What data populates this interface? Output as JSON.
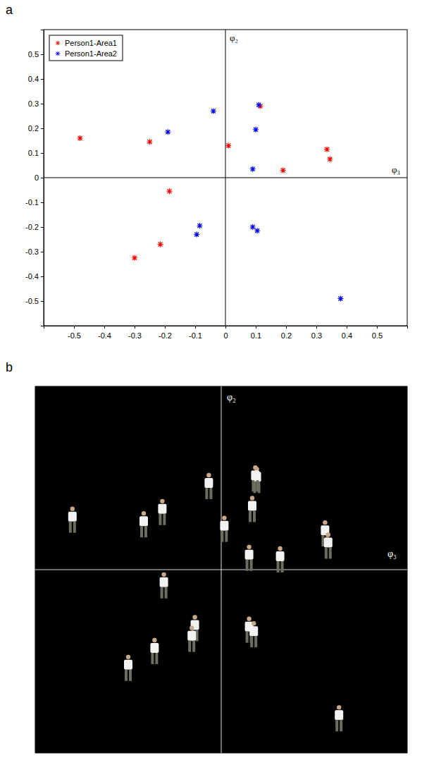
{
  "chart_data": [
    {
      "type": "scatter",
      "panel_label": "a",
      "xlim": [
        -0.6,
        0.6
      ],
      "ylim": [
        -0.6,
        0.6
      ],
      "xticks": [
        -0.5,
        -0.4,
        -0.3,
        -0.2,
        -0.1,
        0,
        0.1,
        0.2,
        0.3,
        0.4,
        0.5
      ],
      "yticks": [
        -0.5,
        -0.4,
        -0.3,
        -0.2,
        -0.1,
        0,
        0.1,
        0.2,
        0.3,
        0.4,
        0.5
      ],
      "annotations": [
        "φ₂",
        "φ₃"
      ],
      "legend": "upper-left",
      "marker": "asterisk",
      "grid": false,
      "series": [
        {
          "name": "Person1-Area1",
          "color": "#ff0000",
          "x": [
            -0.48,
            -0.25,
            0.01,
            0.115,
            0.19,
            0.335,
            0.345,
            -0.185,
            -0.215,
            -0.3
          ],
          "values": [
            0.16,
            0.145,
            0.13,
            0.29,
            0.03,
            0.115,
            0.075,
            -0.055,
            -0.27,
            -0.325
          ]
        },
        {
          "name": "Person1-Area2",
          "color": "#0000ff",
          "x": [
            -0.19,
            -0.04,
            0.11,
            0.1,
            0.09,
            0.09,
            0.105,
            -0.085,
            -0.095,
            0.38
          ],
          "values": [
            0.185,
            0.27,
            0.295,
            0.195,
            0.035,
            -0.2,
            -0.215,
            -0.195,
            -0.23,
            -0.49
          ]
        }
      ]
    },
    {
      "type": "image_scatter",
      "panel_label": "b",
      "xlim": [
        -0.6,
        0.6
      ],
      "ylim": [
        -0.6,
        0.6
      ],
      "tick_labels": false,
      "annotations": [
        "φ₂",
        "φ₃"
      ],
      "marker": "person",
      "x": [
        -0.48,
        -0.25,
        0.01,
        0.115,
        0.19,
        0.335,
        0.345,
        -0.185,
        -0.215,
        -0.3,
        -0.19,
        -0.04,
        0.11,
        0.1,
        0.09,
        0.09,
        0.105,
        -0.085,
        -0.095,
        0.38
      ],
      "values": [
        0.16,
        0.145,
        0.13,
        0.29,
        0.03,
        0.115,
        0.075,
        -0.055,
        -0.27,
        -0.325,
        0.185,
        0.27,
        0.295,
        0.195,
        0.035,
        -0.2,
        -0.215,
        -0.195,
        -0.23,
        -0.49
      ]
    }
  ]
}
